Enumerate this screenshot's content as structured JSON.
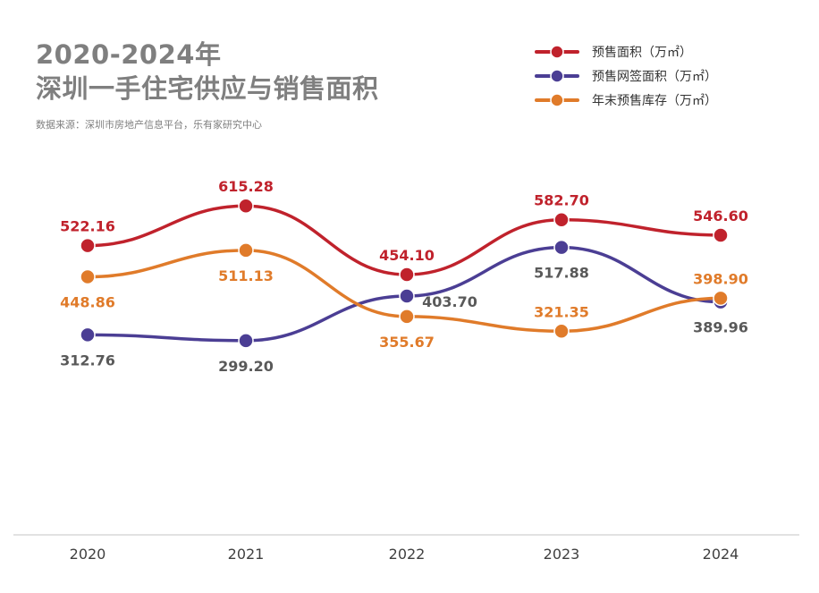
{
  "header": {
    "title_line1": "2020-2024年",
    "title_line2": "深圳一手住宅供应与销售面积",
    "source": "数据来源：深圳市房地产信息平台，乐有家研究中心"
  },
  "chart_data": {
    "type": "line",
    "title": "2020-2024年 深圳一手住宅供应与销售面积",
    "categories": [
      "2020",
      "2021",
      "2022",
      "2023",
      "2024"
    ],
    "ylim": [
      0,
      700
    ],
    "grid": false,
    "legend_position": "top-right",
    "series": [
      {
        "name": "预售面积（万㎡）",
        "color": "#c0222c",
        "label_color": "#c0222c",
        "values": [
          522.16,
          615.28,
          454.1,
          582.7,
          546.6
        ]
      },
      {
        "name": "预售网签面积（万㎡）",
        "color": "#4b3e94",
        "label_color": "#595959",
        "values": [
          312.76,
          299.2,
          403.7,
          517.88,
          389.96
        ]
      },
      {
        "name": "年末预售库存（万㎡）",
        "color": "#e07b2a",
        "label_color": "#e07b2a",
        "values": [
          448.86,
          511.13,
          355.67,
          321.35,
          398.9
        ]
      }
    ],
    "data_labels": [
      [
        "522.16",
        "615.28",
        "454.10",
        "582.70",
        "546.60"
      ],
      [
        "312.76",
        "299.20",
        "403.70",
        "517.88",
        "389.96"
      ],
      [
        "448.86",
        "511.13",
        "355.67",
        "321.35",
        "398.90"
      ]
    ]
  }
}
